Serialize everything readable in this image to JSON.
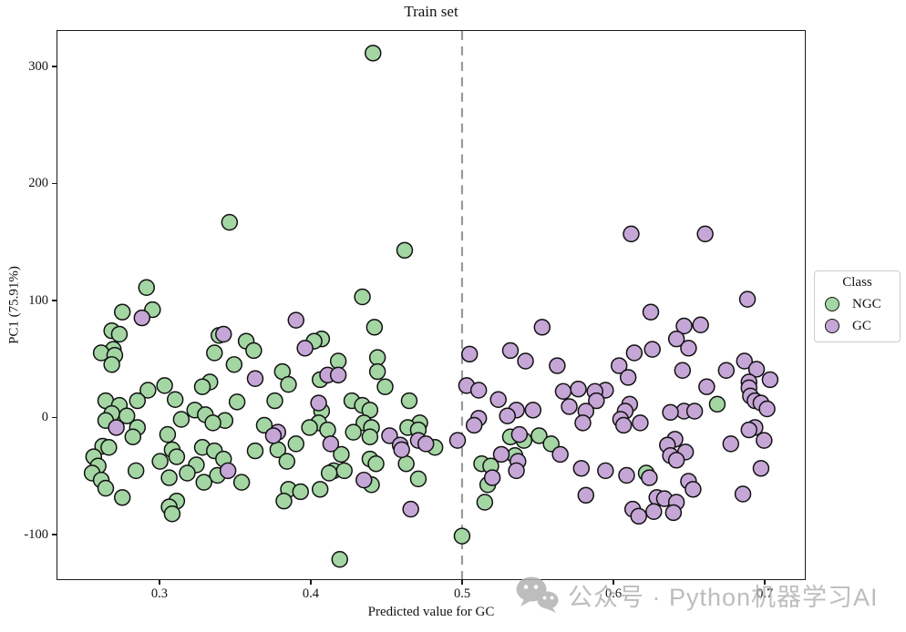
{
  "title": "Train set",
  "watermark": {
    "text": "公众号 · Python机器学习AI",
    "color": "#b2b2b2"
  },
  "legend": {
    "title": "Class",
    "entries": [
      {
        "label": "NGC",
        "color": "#a3d6a3"
      },
      {
        "label": "GC",
        "color": "#c5a6d6"
      }
    ]
  },
  "chart_data": {
    "type": "scatter",
    "title": "Train set",
    "xlabel": "Predicted value for GC",
    "ylabel": "PC1 (75.91%)",
    "xlim": [
      0.232,
      0.727
    ],
    "ylim": [
      -139,
      331
    ],
    "x_ticks": [
      0.3,
      0.4,
      0.5,
      0.6,
      0.7
    ],
    "x_tick_labels": [
      "0.3",
      "0.4",
      "0.5",
      "0.6",
      "0.7"
    ],
    "y_ticks": [
      -100,
      0,
      100,
      200,
      300
    ],
    "y_tick_labels": [
      "-100",
      "0",
      "100",
      "200",
      "300"
    ],
    "grid": false,
    "legend_position": "right",
    "threshold_x": 0.5,
    "threshold_style": "dashed",
    "threshold_color": "#999999",
    "marker_edge": "#111111",
    "marker_radius_px": 8.5,
    "series": [
      {
        "name": "NGC",
        "color": "#a3d6a3",
        "points": [
          [
            0.441,
            312
          ],
          [
            0.346,
            167
          ],
          [
            0.462,
            143
          ],
          [
            0.291,
            111
          ],
          [
            0.434,
            103
          ],
          [
            0.295,
            92
          ],
          [
            0.275,
            90
          ],
          [
            0.442,
            77
          ],
          [
            0.268,
            74
          ],
          [
            0.273,
            71
          ],
          [
            0.339,
            70
          ],
          [
            0.407,
            67
          ],
          [
            0.357,
            65
          ],
          [
            0.402,
            65
          ],
          [
            0.269,
            58
          ],
          [
            0.362,
            57
          ],
          [
            0.261,
            55
          ],
          [
            0.336,
            55
          ],
          [
            0.27,
            53
          ],
          [
            0.444,
            51
          ],
          [
            0.418,
            48
          ],
          [
            0.268,
            45
          ],
          [
            0.349,
            45
          ],
          [
            0.444,
            39
          ],
          [
            0.381,
            39
          ],
          [
            0.406,
            32
          ],
          [
            0.333,
            30
          ],
          [
            0.385,
            28
          ],
          [
            0.303,
            27
          ],
          [
            0.449,
            26
          ],
          [
            0.328,
            26
          ],
          [
            0.292,
            23
          ],
          [
            0.31,
            15
          ],
          [
            0.264,
            14
          ],
          [
            0.285,
            14
          ],
          [
            0.376,
            14
          ],
          [
            0.427,
            14
          ],
          [
            0.465,
            14
          ],
          [
            0.351,
            13
          ],
          [
            0.669,
            11
          ],
          [
            0.273,
            10
          ],
          [
            0.434,
            10
          ],
          [
            0.439,
            6
          ],
          [
            0.323,
            6
          ],
          [
            0.407,
            5
          ],
          [
            0.268,
            3
          ],
          [
            0.33,
            2
          ],
          [
            0.278,
            1
          ],
          [
            0.314,
            -2
          ],
          [
            0.264,
            -3
          ],
          [
            0.343,
            -3
          ],
          [
            0.335,
            -5
          ],
          [
            0.435,
            -5
          ],
          [
            0.472,
            -5
          ],
          [
            0.405,
            -5
          ],
          [
            0.369,
            -7
          ],
          [
            0.285,
            -9
          ],
          [
            0.44,
            -9
          ],
          [
            0.464,
            -9
          ],
          [
            0.399,
            -9
          ],
          [
            0.411,
            -11
          ],
          [
            0.471,
            -11
          ],
          [
            0.428,
            -13
          ],
          [
            0.305,
            -15
          ],
          [
            0.551,
            -16
          ],
          [
            0.282,
            -17
          ],
          [
            0.439,
            -17
          ],
          [
            0.532,
            -17
          ],
          [
            0.541,
            -20
          ],
          [
            0.39,
            -23
          ],
          [
            0.559,
            -23
          ],
          [
            0.262,
            -25
          ],
          [
            0.266,
            -26
          ],
          [
            0.328,
            -26
          ],
          [
            0.482,
            -26
          ],
          [
            0.308,
            -28
          ],
          [
            0.378,
            -28
          ],
          [
            0.336,
            -29
          ],
          [
            0.363,
            -29
          ],
          [
            0.42,
            -32
          ],
          [
            0.535,
            -33
          ],
          [
            0.256,
            -34
          ],
          [
            0.311,
            -34
          ],
          [
            0.342,
            -36
          ],
          [
            0.439,
            -36
          ],
          [
            0.3,
            -38
          ],
          [
            0.384,
            -38
          ],
          [
            0.443,
            -40
          ],
          [
            0.463,
            -40
          ],
          [
            0.513,
            -40
          ],
          [
            0.324,
            -41
          ],
          [
            0.259,
            -42
          ],
          [
            0.519,
            -42
          ],
          [
            0.284,
            -46
          ],
          [
            0.415,
            -46
          ],
          [
            0.422,
            -46
          ],
          [
            0.255,
            -48
          ],
          [
            0.318,
            -48
          ],
          [
            0.412,
            -48
          ],
          [
            0.622,
            -48
          ],
          [
            0.338,
            -50
          ],
          [
            0.306,
            -52
          ],
          [
            0.471,
            -53
          ],
          [
            0.261,
            -54
          ],
          [
            0.329,
            -56
          ],
          [
            0.354,
            -56
          ],
          [
            0.44,
            -58
          ],
          [
            0.517,
            -58
          ],
          [
            0.264,
            -61
          ],
          [
            0.385,
            -62
          ],
          [
            0.406,
            -62
          ],
          [
            0.393,
            -64
          ],
          [
            0.275,
            -69
          ],
          [
            0.311,
            -72
          ],
          [
            0.382,
            -72
          ],
          [
            0.515,
            -73
          ],
          [
            0.306,
            -77
          ],
          [
            0.308,
            -83
          ],
          [
            0.5,
            -102
          ],
          [
            0.419,
            -122
          ]
        ]
      },
      {
        "name": "GC",
        "color": "#c5a6d6",
        "points": [
          [
            0.612,
            157
          ],
          [
            0.661,
            157
          ],
          [
            0.689,
            101
          ],
          [
            0.625,
            90
          ],
          [
            0.288,
            85
          ],
          [
            0.39,
            83
          ],
          [
            0.658,
            79
          ],
          [
            0.647,
            78
          ],
          [
            0.553,
            77
          ],
          [
            0.342,
            71
          ],
          [
            0.642,
            67
          ],
          [
            0.396,
            59
          ],
          [
            0.65,
            59
          ],
          [
            0.626,
            58
          ],
          [
            0.532,
            57
          ],
          [
            0.614,
            55
          ],
          [
            0.505,
            54
          ],
          [
            0.542,
            48
          ],
          [
            0.687,
            48
          ],
          [
            0.563,
            44
          ],
          [
            0.604,
            44
          ],
          [
            0.695,
            41
          ],
          [
            0.646,
            40
          ],
          [
            0.675,
            40
          ],
          [
            0.411,
            36
          ],
          [
            0.418,
            36
          ],
          [
            0.61,
            34
          ],
          [
            0.363,
            33
          ],
          [
            0.704,
            32
          ],
          [
            0.69,
            30
          ],
          [
            0.503,
            27
          ],
          [
            0.662,
            26
          ],
          [
            0.69,
            25
          ],
          [
            0.577,
            24
          ],
          [
            0.511,
            23
          ],
          [
            0.595,
            23
          ],
          [
            0.567,
            22
          ],
          [
            0.588,
            22
          ],
          [
            0.691,
            18
          ],
          [
            0.524,
            15
          ],
          [
            0.589,
            14
          ],
          [
            0.694,
            14
          ],
          [
            0.405,
            12
          ],
          [
            0.698,
            12
          ],
          [
            0.611,
            11
          ],
          [
            0.571,
            9
          ],
          [
            0.702,
            7
          ],
          [
            0.536,
            6
          ],
          [
            0.547,
            6
          ],
          [
            0.582,
            5
          ],
          [
            0.608,
            5
          ],
          [
            0.647,
            5
          ],
          [
            0.654,
            5
          ],
          [
            0.638,
            4
          ],
          [
            0.53,
            1
          ],
          [
            0.511,
            -1
          ],
          [
            0.605,
            -2
          ],
          [
            0.58,
            -5
          ],
          [
            0.618,
            -5
          ],
          [
            0.508,
            -7
          ],
          [
            0.607,
            -7
          ],
          [
            0.271,
            -9
          ],
          [
            0.694,
            -9
          ],
          [
            0.69,
            -11
          ],
          [
            0.378,
            -13
          ],
          [
            0.538,
            -15
          ],
          [
            0.375,
            -16
          ],
          [
            0.452,
            -16
          ],
          [
            0.641,
            -19
          ],
          [
            0.471,
            -20
          ],
          [
            0.497,
            -20
          ],
          [
            0.7,
            -20
          ],
          [
            0.413,
            -23
          ],
          [
            0.476,
            -23
          ],
          [
            0.678,
            -23
          ],
          [
            0.459,
            -24
          ],
          [
            0.636,
            -24
          ],
          [
            0.46,
            -28
          ],
          [
            0.648,
            -30
          ],
          [
            0.526,
            -32
          ],
          [
            0.565,
            -32
          ],
          [
            0.638,
            -33
          ],
          [
            0.642,
            -37
          ],
          [
            0.537,
            -38
          ],
          [
            0.579,
            -44
          ],
          [
            0.698,
            -44
          ],
          [
            0.345,
            -46
          ],
          [
            0.536,
            -46
          ],
          [
            0.595,
            -46
          ],
          [
            0.609,
            -50
          ],
          [
            0.52,
            -52
          ],
          [
            0.624,
            -52
          ],
          [
            0.435,
            -54
          ],
          [
            0.65,
            -55
          ],
          [
            0.653,
            -62
          ],
          [
            0.686,
            -66
          ],
          [
            0.582,
            -67
          ],
          [
            0.629,
            -69
          ],
          [
            0.634,
            -70
          ],
          [
            0.642,
            -73
          ],
          [
            0.466,
            -79
          ],
          [
            0.613,
            -79
          ],
          [
            0.627,
            -81
          ],
          [
            0.64,
            -82
          ],
          [
            0.617,
            -85
          ]
        ]
      }
    ]
  }
}
